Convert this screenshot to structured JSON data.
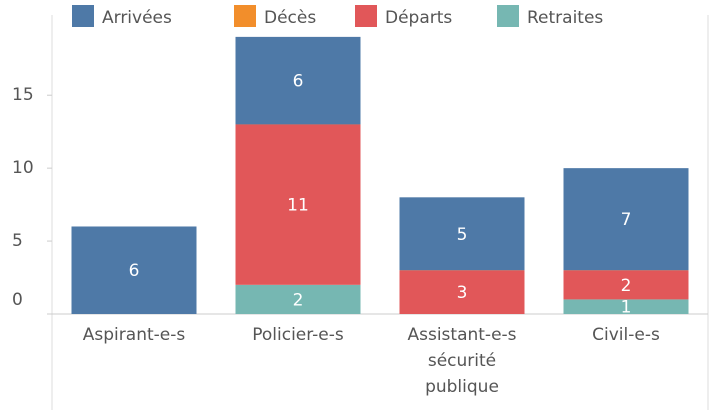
{
  "chart_data": {
    "type": "stacked_bar",
    "categories": [
      "Aspirant-e-s",
      "Policier-e-s",
      "Assistant-e-s sécurité publique",
      "Civil-e-s"
    ],
    "series": [
      {
        "name": "Arrivées",
        "color": "#4e79a7",
        "values": [
          6,
          6,
          5,
          7
        ]
      },
      {
        "name": "Décès",
        "color": "#f28e2b",
        "values": [
          null,
          0,
          0,
          0
        ]
      },
      {
        "name": "Départs",
        "color": "#e15759",
        "values": [
          null,
          11,
          3,
          2
        ]
      },
      {
        "name": "Retraites",
        "color": "#76b7b2",
        "values": [
          null,
          2,
          null,
          1
        ]
      }
    ],
    "ylim": [
      0,
      20.5
    ],
    "yticks": [
      0,
      5,
      10,
      15
    ],
    "legend": "top"
  }
}
